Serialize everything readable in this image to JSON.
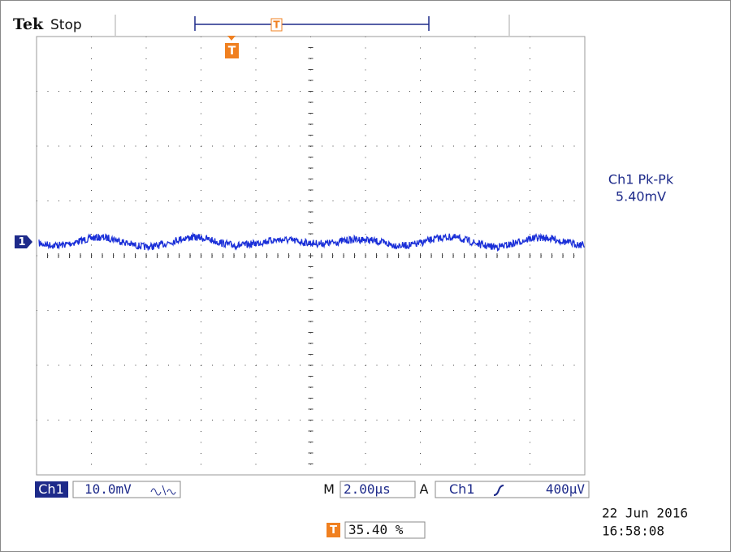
{
  "header": {
    "brand": "Tek",
    "state": "Stop",
    "trigger_position_marker": "T"
  },
  "display": {
    "trigger_marker": "T",
    "channel_marker": "1"
  },
  "measurement": {
    "label": "Ch1 Pk-Pk",
    "value": "5.40mV"
  },
  "status_bar": {
    "channel": "Ch1",
    "scale": "10.0mV",
    "time_prefix": "M",
    "time_scale": "2.00µs",
    "trigger_prefix": "A",
    "trigger_source": "Ch1",
    "trigger_level": "400µV"
  },
  "footer": {
    "date": "22 Jun  2016",
    "time": "16:58:08",
    "position_marker": "T",
    "position": "35.40 %"
  }
}
